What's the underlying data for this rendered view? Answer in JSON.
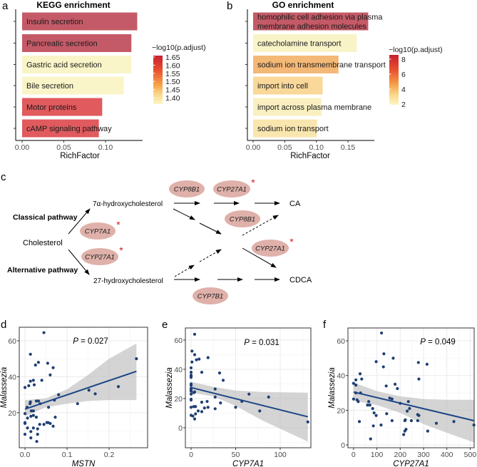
{
  "panel_labels": {
    "a": "a",
    "b": "b",
    "c": "c",
    "d": "d",
    "e": "e",
    "f": "f"
  },
  "chart_data": [
    {
      "id": "a",
      "type": "bar",
      "orientation": "horizontal",
      "title": "KEGG enrichment",
      "xlabel": "RichFactor",
      "xticks": [
        "0.00",
        "0.05",
        "0.10"
      ],
      "xlim": [
        0,
        0.145
      ],
      "categories": [
        "Insulin secretion",
        "Pancreatic secretion",
        "Gastric acid secretion",
        "Bile secretion",
        "Motor proteins",
        "cAMP signaling pathway"
      ],
      "values": [
        0.138,
        0.131,
        0.131,
        0.122,
        0.096,
        0.092
      ],
      "color_values": [
        1.66,
        1.66,
        1.37,
        1.37,
        1.6,
        1.6
      ],
      "colors": [
        "#c45a67",
        "#c45a67",
        "#f9f5c8",
        "#f9f5c8",
        "#e05a5e",
        "#e05a5e"
      ],
      "legend": {
        "title": "−log10(p.adjust)",
        "ticks": [
          "1.65",
          "1.60",
          "1.55",
          "1.50",
          "1.45",
          "1.40"
        ],
        "placement": "right"
      }
    },
    {
      "id": "b",
      "type": "bar",
      "orientation": "horizontal",
      "title": "GO enrichment",
      "xlabel": "RichFactor",
      "xticks": [
        "0.00",
        "0.05",
        "0.10",
        "0.15"
      ],
      "xlim": [
        0,
        0.19
      ],
      "categories": [
        "homophilic cell adhesion via plasma membrane adhesion molecules",
        "catecholamine transport",
        "sodium ion transmembrane transport",
        "import into cell",
        "import across plasma membrane",
        "sodium ion transport"
      ],
      "category_lines": [
        [
          "homophilic cell adhesion via plasma",
          "membrane adhesion molecules"
        ],
        [
          "catecholamine transport"
        ],
        [
          "sodium ion transmembrane transport"
        ],
        [
          "import into cell"
        ],
        [
          "import across plasma membrane"
        ],
        [
          "sodium ion transport"
        ]
      ],
      "values": [
        0.182,
        0.164,
        0.135,
        0.11,
        0.108,
        0.101
      ],
      "color_values": [
        8.3,
        1.9,
        4.6,
        3.3,
        2.2,
        2.6
      ],
      "colors": [
        "#c45a67",
        "#f9f4c8",
        "#f4b877",
        "#f9d89a",
        "#faefc0",
        "#f9e6ae"
      ],
      "legend": {
        "title": "−log10(p.adjust)",
        "ticks": [
          "8",
          "6",
          "4",
          "2"
        ],
        "placement": "right"
      }
    },
    {
      "id": "d",
      "type": "scatter",
      "xlabel": "MSTN",
      "ylabel": "Malassezia",
      "annotation": "P = 0.027",
      "xlim": [
        -0.0136,
        0.2915
      ],
      "ylim": [
        0.5,
        67.5
      ],
      "xticks": [
        0,
        0.1,
        0.2
      ],
      "xtick_labels": [
        "0.0",
        "0.1",
        "0.2"
      ],
      "yticks": [
        20,
        40,
        60
      ],
      "ytick_labels": [
        "20",
        "40",
        "60"
      ],
      "points": [
        [
          0.045,
          64.5
        ],
        [
          0.013,
          52.5
        ],
        [
          0.032,
          48
        ],
        [
          0.054,
          47.5
        ],
        [
          0.025,
          46.5
        ],
        [
          0.067,
          45
        ],
        [
          0.06,
          41
        ],
        [
          0.02,
          38
        ],
        [
          0.013,
          37.5
        ],
        [
          0.04,
          38
        ],
        [
          0.009,
          35
        ],
        [
          0.022,
          35.5
        ],
        [
          0.0,
          34
        ],
        [
          0.08,
          30
        ],
        [
          0.152,
          32.5
        ],
        [
          0.167,
          30.5
        ],
        [
          0.222,
          34.5
        ],
        [
          0.265,
          50
        ],
        [
          0.013,
          26
        ],
        [
          0.027,
          26.5
        ],
        [
          0.032,
          26.5
        ],
        [
          0.036,
          25
        ],
        [
          0.012,
          25
        ],
        [
          0.005,
          23
        ],
        [
          0.07,
          27
        ],
        [
          0.125,
          25
        ],
        [
          0.056,
          23
        ],
        [
          0.015,
          21
        ],
        [
          0.02,
          21
        ],
        [
          0.0,
          19.5
        ],
        [
          0.02,
          18.5
        ],
        [
          0.014,
          18
        ],
        [
          0.027,
          17.5
        ],
        [
          0.006,
          17
        ],
        [
          0.072,
          17.5
        ],
        [
          0.0,
          14
        ],
        [
          0.0,
          14.5
        ],
        [
          0.035,
          13.5
        ],
        [
          0.045,
          13.5
        ],
        [
          0.052,
          14.5
        ],
        [
          0.055,
          14.5
        ],
        [
          0.06,
          14
        ],
        [
          0.067,
          12.5
        ],
        [
          0.006,
          11.5
        ],
        [
          0.02,
          11.5
        ],
        [
          0.03,
          11
        ],
        [
          0.014,
          9.5
        ],
        [
          0.0,
          8
        ],
        [
          0.03,
          8
        ],
        [
          0.014,
          6
        ],
        [
          0.028,
          4
        ]
      ],
      "fit": {
        "x": [
          0,
          0.265
        ],
        "y": [
          22,
          43
        ]
      },
      "ci": {
        "x": [
          0,
          0.05,
          0.1,
          0.15,
          0.2,
          0.265
        ],
        "lower": [
          18,
          23,
          25,
          26.5,
          27,
          27
        ],
        "upper": [
          27,
          28,
          33,
          41,
          50,
          58.5
        ]
      },
      "point_color": "#1f3f73",
      "line_color": "#1c4585",
      "grid": true
    },
    {
      "id": "e",
      "type": "scatter",
      "xlabel": "CYP7A1",
      "ylabel": "Malassezia",
      "annotation": "P = 0.031",
      "xlim": [
        -6.4,
        134.4
      ],
      "ylim": [
        -13.7,
        68.3
      ],
      "xticks": [
        0,
        50,
        100
      ],
      "xtick_labels": [
        "0",
        "50",
        "100"
      ],
      "yticks": [
        0,
        20,
        40,
        60
      ],
      "ytick_labels": [
        "0",
        "20",
        "40",
        "60"
      ],
      "points": [
        [
          4,
          64
        ],
        [
          1,
          52.5
        ],
        [
          4,
          50
        ],
        [
          9,
          47
        ],
        [
          6,
          46.5
        ],
        [
          19,
          48
        ],
        [
          1,
          45
        ],
        [
          12,
          38
        ],
        [
          0,
          41
        ],
        [
          0,
          38
        ],
        [
          32,
          37.5
        ],
        [
          36,
          32.5
        ],
        [
          0,
          36
        ],
        [
          0,
          35
        ],
        [
          0,
          34.5
        ],
        [
          0,
          30
        ],
        [
          0,
          29
        ],
        [
          0,
          27
        ],
        [
          0,
          26
        ],
        [
          0,
          25
        ],
        [
          4,
          24.5
        ],
        [
          3,
          24
        ],
        [
          0,
          23
        ],
        [
          27,
          26.5
        ],
        [
          27,
          21
        ],
        [
          65,
          23
        ],
        [
          87,
          21
        ],
        [
          57,
          18
        ],
        [
          0,
          19.5
        ],
        [
          0,
          19
        ],
        [
          12,
          17.5
        ],
        [
          18,
          18
        ],
        [
          33,
          17
        ],
        [
          0,
          14
        ],
        [
          3,
          14.5
        ],
        [
          5,
          14.5
        ],
        [
          15,
          13.5
        ],
        [
          19,
          14
        ],
        [
          27,
          13
        ],
        [
          50,
          14
        ],
        [
          8,
          11.5
        ],
        [
          12,
          11
        ],
        [
          77,
          11.5
        ],
        [
          0,
          8.5
        ],
        [
          2,
          8
        ],
        [
          5,
          9.5
        ],
        [
          4,
          6
        ],
        [
          131,
          4
        ]
      ],
      "fit": {
        "x": [
          0,
          131
        ],
        "y": [
          27.5,
          7.5
        ]
      },
      "ci": {
        "x": [
          0,
          25,
          50,
          80,
          131
        ],
        "lower": [
          24,
          21.5,
          15,
          5,
          -9.5
        ],
        "upper": [
          31.5,
          28,
          25.5,
          24.5,
          24
        ]
      },
      "point_color": "#1f3f73",
      "line_color": "#1c4585",
      "grid": true
    },
    {
      "id": "f",
      "type": "scatter",
      "xlabel": "CYP27A1",
      "ylabel": "Malassezia",
      "annotation": "P = 0.049",
      "xlim": [
        -24,
        517
      ],
      "ylim": [
        -1.6,
        67.4
      ],
      "xticks": [
        0,
        100,
        200,
        300,
        400,
        500
      ],
      "xtick_labels": [
        "0",
        "100",
        "200",
        "300",
        "400",
        "500"
      ],
      "yticks": [
        0,
        20,
        40,
        60
      ],
      "ytick_labels": [
        "0",
        "20",
        "40",
        "60"
      ],
      "points": [
        [
          120,
          64.5
        ],
        [
          130,
          52.5
        ],
        [
          170,
          50
        ],
        [
          97,
          48
        ],
        [
          278,
          47.5
        ],
        [
          315,
          46.5
        ],
        [
          128,
          45
        ],
        [
          28,
          41
        ],
        [
          280,
          38
        ],
        [
          10,
          37.5
        ],
        [
          35,
          38
        ],
        [
          0,
          35.5
        ],
        [
          10,
          34.5
        ],
        [
          140,
          34
        ],
        [
          178,
          35
        ],
        [
          188,
          32.5
        ],
        [
          10,
          30
        ],
        [
          30,
          30
        ],
        [
          0,
          26.5
        ],
        [
          15,
          26
        ],
        [
          20,
          25
        ],
        [
          155,
          27
        ],
        [
          165,
          26.5
        ],
        [
          200,
          24
        ],
        [
          235,
          25
        ],
        [
          240,
          21
        ],
        [
          60,
          23
        ],
        [
          70,
          23
        ],
        [
          65,
          25
        ],
        [
          82,
          21
        ],
        [
          88,
          18.5
        ],
        [
          97,
          17
        ],
        [
          142,
          18
        ],
        [
          230,
          19.5
        ],
        [
          275,
          17.5
        ],
        [
          280,
          17
        ],
        [
          25,
          13.5
        ],
        [
          165,
          14
        ],
        [
          220,
          14
        ],
        [
          222,
          14.5
        ],
        [
          248,
          14
        ],
        [
          275,
          14
        ],
        [
          355,
          12.5
        ],
        [
          430,
          13.5
        ],
        [
          516,
          11.5
        ],
        [
          85,
          11
        ],
        [
          118,
          11.5
        ],
        [
          225,
          9
        ],
        [
          220,
          8
        ],
        [
          318,
          8
        ],
        [
          215,
          6
        ],
        [
          73,
          3.5
        ]
      ],
      "fit": {
        "x": [
          0,
          516
        ],
        "y": [
          30.5,
          14
        ]
      },
      "ci": {
        "x": [
          0,
          100,
          200,
          300,
          400,
          516
        ],
        "lower": [
          25.5,
          23,
          18.5,
          12,
          7,
          1.5
        ],
        "upper": [
          36,
          31,
          28,
          26.5,
          26,
          26
        ]
      },
      "point_color": "#1f3f73",
      "line_color": "#1c4585",
      "grid": true
    }
  ],
  "diagram": {
    "nodes": {
      "cholesterol": "Cholesterol",
      "alpha_hc": "7α-hydroxycholesterol",
      "hc27": "27-hydroxycholesterol",
      "ca": "CA",
      "cdca": "CDCA"
    },
    "pathways": {
      "classical": "Classical pathway",
      "alternative": "Alternative pathway"
    },
    "enzymes": [
      {
        "label": "CYP7A1",
        "significant": true
      },
      {
        "label": "CYP27A1",
        "significant": true
      },
      {
        "label": "CYP8B1",
        "significant": false
      },
      {
        "label": "CYP27A1",
        "significant": true
      },
      {
        "label": "CYP8B1",
        "significant": false
      },
      {
        "label": "CYP27A1",
        "significant": true
      },
      {
        "label": "CYP7B1",
        "significant": false
      }
    ],
    "significance_mark": "*",
    "enzyme_color": "#dfb1aa",
    "star_color": "#d7191c"
  }
}
